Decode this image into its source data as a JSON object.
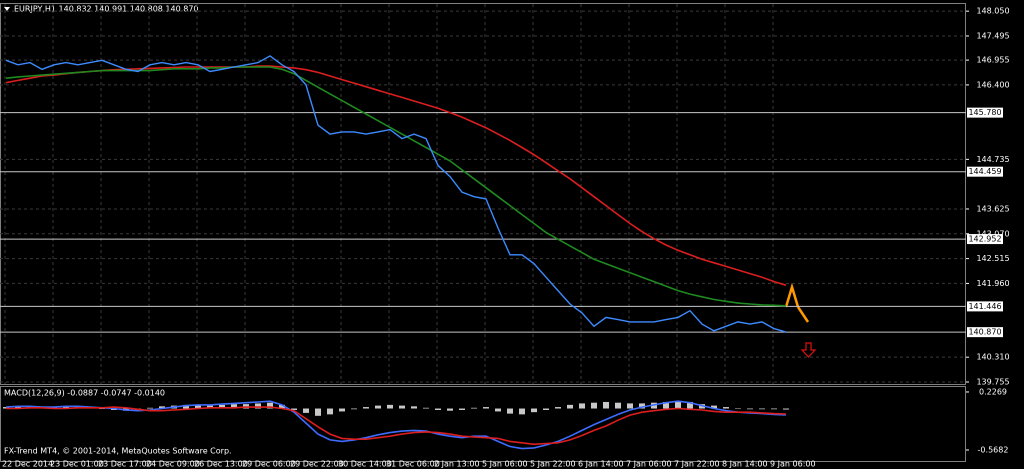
{
  "chart_data": [
    {
      "type": "line",
      "title": "EURJPY,H1  140.832 140.991 140.808 140.870",
      "categories": [
        null,
        "22 Dec 2014",
        null,
        null,
        null,
        "23 Dec 01:00",
        null,
        null,
        null,
        "23 Dec 17:00",
        null,
        null,
        null,
        "24 Dec 09:00",
        null,
        null,
        null,
        "26 Dec 13:00",
        null,
        null,
        null,
        "29 Dec 06:00",
        null,
        null,
        null,
        "29 Dec 22:00",
        null,
        null,
        null,
        "30 Dec 14:00",
        null,
        null,
        null,
        "31 Dec 06:00",
        null,
        null,
        null,
        "2 Jan 13:00",
        null,
        null,
        null,
        "5 Jan 06:00",
        null,
        null,
        null,
        "5 Jan 22:00",
        null,
        null,
        null,
        "6 Jan 14:00",
        null,
        null,
        null,
        "7 Jan 06:00",
        null,
        null,
        null,
        "7 Jan 22:00",
        null,
        null,
        null,
        "8 Jan 14:00",
        null,
        null,
        null,
        "9 Jan 06:00"
      ],
      "series": [
        {
          "color": "#dc1e1e",
          "values": [
            146.45,
            146.5,
            146.55,
            146.6,
            146.62,
            146.65,
            146.68,
            146.7,
            146.72,
            146.74,
            146.75,
            146.76,
            146.77,
            146.78,
            146.79,
            146.8,
            146.8,
            146.8,
            146.8,
            146.8,
            146.8,
            146.82,
            146.82,
            146.8,
            146.78,
            146.74,
            146.68,
            146.6,
            146.52,
            146.44,
            146.36,
            146.28,
            146.2,
            146.12,
            146.04,
            145.96,
            145.88,
            145.78,
            145.68,
            145.56,
            145.44,
            145.3,
            145.16,
            145.0,
            144.84,
            144.66,
            144.48,
            144.3,
            144.1,
            143.9,
            143.7,
            143.5,
            143.3,
            143.12,
            142.96,
            142.82,
            142.7,
            142.6,
            142.5,
            142.42,
            142.34,
            142.26,
            142.18,
            142.1,
            142.0,
            141.92
          ]
        },
        {
          "color": "#1f8a1f",
          "values": [
            146.55,
            146.58,
            146.6,
            146.62,
            146.64,
            146.66,
            146.68,
            146.7,
            146.72,
            146.72,
            146.72,
            146.72,
            146.72,
            146.74,
            146.76,
            146.76,
            146.76,
            146.78,
            146.78,
            146.8,
            146.8,
            146.8,
            146.8,
            146.75,
            146.65,
            146.5,
            146.35,
            146.2,
            146.05,
            145.9,
            145.75,
            145.6,
            145.45,
            145.3,
            145.15,
            145.0,
            144.85,
            144.7,
            144.5,
            144.3,
            144.1,
            143.9,
            143.7,
            143.5,
            143.3,
            143.1,
            142.95,
            142.8,
            142.65,
            142.5,
            142.4,
            142.3,
            142.2,
            142.1,
            142.0,
            141.9,
            141.8,
            141.72,
            141.66,
            141.6,
            141.56,
            141.52,
            141.5,
            141.48,
            141.47,
            141.46
          ]
        },
        {
          "color": "#3d8bff",
          "values": [
            146.95,
            146.85,
            146.9,
            146.75,
            146.85,
            146.9,
            146.85,
            146.9,
            146.95,
            146.85,
            146.75,
            146.7,
            146.85,
            146.9,
            146.85,
            146.9,
            146.85,
            146.7,
            146.75,
            146.8,
            146.85,
            146.9,
            147.05,
            146.85,
            146.7,
            146.4,
            145.5,
            145.3,
            145.35,
            145.35,
            145.3,
            145.35,
            145.4,
            145.2,
            145.3,
            145.2,
            144.6,
            144.35,
            144.0,
            143.9,
            143.85,
            143.2,
            142.6,
            142.6,
            142.4,
            142.1,
            141.8,
            141.5,
            141.3,
            141.0,
            141.2,
            141.15,
            141.1,
            141.1,
            141.1,
            141.15,
            141.2,
            141.35,
            141.05,
            140.9,
            141.0,
            141.1,
            141.05,
            141.1,
            140.95,
            140.87
          ]
        }
      ],
      "ylim": [
        139.71,
        148.21
      ],
      "yticks": [
        {
          "value": 148.05,
          "label": "148.050"
        },
        {
          "value": 147.495,
          "label": "147.495"
        },
        {
          "value": 146.955,
          "label": "146.955"
        },
        {
          "value": 146.4,
          "label": "146.400"
        },
        {
          "value": 144.735,
          "label": "144.735"
        },
        {
          "value": 143.625,
          "label": "143.625"
        },
        {
          "value": 143.07,
          "label": "143.070"
        },
        {
          "value": 142.515,
          "label": "142.515"
        },
        {
          "value": 141.96,
          "label": "141.960"
        },
        {
          "value": 140.31,
          "label": "140.310"
        },
        {
          "value": 139.755,
          "label": "139.755"
        }
      ],
      "levels": [
        {
          "value": 145.78,
          "label": "145.780"
        },
        {
          "value": 144.459,
          "label": "144.459"
        },
        {
          "value": 142.952,
          "label": "142.952"
        },
        {
          "value": 141.446,
          "label": "141.446"
        },
        {
          "value": 140.87,
          "label": "140.870"
        }
      ],
      "grid": true
    },
    {
      "type": "bar",
      "title": "MACD(12,26,9) -0.0887 -0.0747 -0.0140",
      "annotation": "FX-Trend MT4, © 2001-2014, MetaQuotes Software Corp.",
      "color": "#c8c8c8",
      "values": [
        0.02,
        0.03,
        0.02,
        0.01,
        0.02,
        0.03,
        0.02,
        0.01,
        0.0,
        -0.02,
        -0.03,
        -0.02,
        0.01,
        0.03,
        0.04,
        0.05,
        0.05,
        0.04,
        0.05,
        0.06,
        0.06,
        0.07,
        0.08,
        0.05,
        -0.02,
        -0.06,
        -0.1,
        -0.08,
        -0.04,
        -0.01,
        0.02,
        0.04,
        0.05,
        0.04,
        0.03,
        0.01,
        -0.02,
        -0.03,
        -0.02,
        0.01,
        0.02,
        -0.04,
        -0.07,
        -0.08,
        -0.05,
        -0.02,
        0.02,
        0.05,
        0.07,
        0.08,
        0.09,
        0.08,
        0.07,
        0.07,
        0.08,
        0.09,
        0.1,
        0.09,
        0.06,
        0.04,
        0.02,
        0.0,
        -0.01,
        -0.01,
        -0.01,
        -0.014
      ],
      "series": [
        {
          "color": "#3d6cff",
          "values": [
            0.02,
            0.03,
            0.03,
            0.02,
            0.02,
            0.03,
            0.03,
            0.02,
            0.01,
            0.0,
            -0.02,
            -0.03,
            -0.02,
            0.0,
            0.02,
            0.04,
            0.05,
            0.05,
            0.06,
            0.07,
            0.08,
            0.09,
            0.1,
            0.05,
            -0.05,
            -0.2,
            -0.35,
            -0.43,
            -0.45,
            -0.43,
            -0.4,
            -0.36,
            -0.33,
            -0.31,
            -0.3,
            -0.31,
            -0.35,
            -0.38,
            -0.4,
            -0.38,
            -0.38,
            -0.45,
            -0.52,
            -0.55,
            -0.54,
            -0.5,
            -0.45,
            -0.38,
            -0.3,
            -0.22,
            -0.15,
            -0.08,
            -0.02,
            0.02,
            0.05,
            0.08,
            0.1,
            0.08,
            0.04,
            0.0,
            -0.03,
            -0.05,
            -0.06,
            -0.07,
            -0.08,
            -0.0887
          ]
        },
        {
          "color": "#dc1e1e",
          "values": [
            0.0,
            0.0,
            0.01,
            0.01,
            0.0,
            0.0,
            0.01,
            0.01,
            0.01,
            0.02,
            0.01,
            -0.01,
            -0.03,
            -0.03,
            -0.02,
            -0.01,
            0.0,
            0.01,
            0.01,
            0.01,
            0.02,
            0.02,
            0.02,
            0.0,
            -0.03,
            -0.14,
            -0.25,
            -0.35,
            -0.41,
            -0.42,
            -0.42,
            -0.4,
            -0.38,
            -0.35,
            -0.33,
            -0.32,
            -0.33,
            -0.35,
            -0.38,
            -0.39,
            -0.4,
            -0.41,
            -0.45,
            -0.47,
            -0.49,
            -0.48,
            -0.47,
            -0.43,
            -0.37,
            -0.3,
            -0.24,
            -0.16,
            -0.09,
            -0.05,
            -0.03,
            -0.01,
            0.0,
            -0.01,
            -0.02,
            -0.04,
            -0.05,
            -0.05,
            -0.05,
            -0.06,
            -0.07,
            -0.0747
          ]
        }
      ],
      "ylim": [
        -0.733,
        0.295
      ],
      "yticks": [
        0.2269,
        -0.5682
      ]
    }
  ]
}
